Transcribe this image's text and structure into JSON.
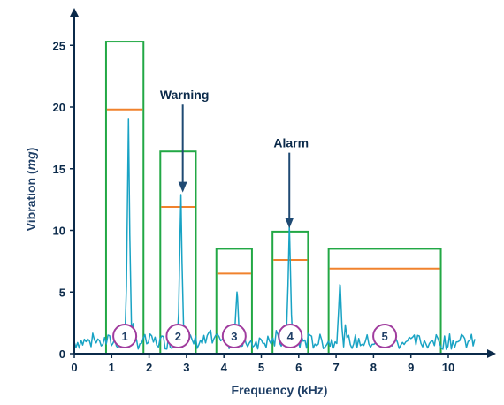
{
  "chart_data": {
    "type": "line",
    "title": "",
    "xlabel": "Frequency (kHz)",
    "ylabel_parts": [
      "Vibration (",
      "mg",
      ")"
    ],
    "xlim": [
      0,
      11
    ],
    "ylim": [
      0,
      26
    ],
    "x_ticks": [
      "0",
      "1",
      "2",
      "3",
      "4",
      "5",
      "6",
      "7",
      "8",
      "9",
      "10"
    ],
    "y_ticks": [
      "0",
      "5",
      "10",
      "15",
      "20",
      "25"
    ],
    "colors": {
      "axis": "#0b2a4a",
      "spectrum": "#19a3c4",
      "band_box": "#22a845",
      "threshold": "#f0822d",
      "marker_ring": "#a03c9e",
      "arrow": "#1f4a73"
    },
    "bands": [
      {
        "label": "1",
        "x_start": 0.85,
        "x_end": 1.85,
        "top": 25.3,
        "threshold": 19.8
      },
      {
        "label": "2",
        "x_start": 2.3,
        "x_end": 3.25,
        "top": 16.4,
        "threshold": 11.9
      },
      {
        "label": "3",
        "x_start": 3.8,
        "x_end": 4.75,
        "top": 8.5,
        "threshold": 6.5
      },
      {
        "label": "4",
        "x_start": 5.3,
        "x_end": 6.25,
        "top": 9.9,
        "threshold": 7.6
      },
      {
        "label": "5",
        "x_start": 6.8,
        "x_end": 9.8,
        "top": 8.5,
        "threshold": 6.9
      }
    ],
    "peaks": [
      {
        "x": 1.45,
        "y": 19.0
      },
      {
        "x": 2.85,
        "y": 12.9
      },
      {
        "x": 4.35,
        "y": 5.0
      },
      {
        "x": 5.75,
        "y": 10.3
      },
      {
        "x": 7.1,
        "y": 5.6
      }
    ],
    "annotations": [
      {
        "text": "Warning",
        "x": 2.9,
        "arrow_from": 20.2,
        "arrow_to": 13.5
      },
      {
        "text": "Alarm",
        "x": 5.75,
        "arrow_from": 16.3,
        "arrow_to": 10.6
      }
    ]
  }
}
